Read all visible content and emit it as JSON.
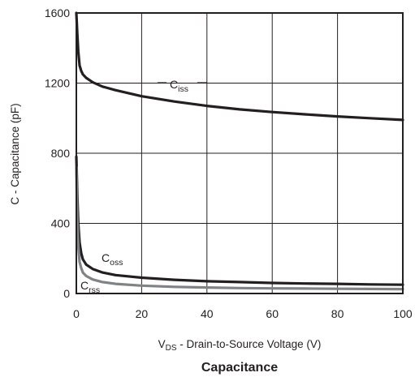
{
  "chart_data": {
    "type": "line",
    "title": "Capacitance",
    "xlabel": {
      "prefix": "V",
      "subscript": "DS",
      "rest": " - Drain-to-Source Voltage (V)"
    },
    "ylabel": "C - Capacitance (pF)",
    "xlim": [
      0,
      100
    ],
    "ylim": [
      0,
      1600
    ],
    "x_ticks": [
      0,
      20,
      40,
      60,
      80,
      100
    ],
    "y_ticks": [
      0,
      400,
      800,
      1200,
      1600
    ],
    "grid": true,
    "series": [
      {
        "name": {
          "main": "C",
          "sub": "iss"
        },
        "color": "#231f20",
        "x": [
          0,
          0.3,
          0.6,
          1,
          1.5,
          2,
          3,
          5,
          8,
          12,
          20,
          30,
          40,
          50,
          60,
          70,
          80,
          90,
          100
        ],
        "y": [
          1600,
          1480,
          1380,
          1300,
          1270,
          1250,
          1230,
          1205,
          1180,
          1160,
          1125,
          1095,
          1070,
          1050,
          1035,
          1022,
          1010,
          1000,
          990
        ]
      },
      {
        "name": {
          "main": "C",
          "sub": "oss"
        },
        "color": "#231f20",
        "x": [
          0,
          0.3,
          0.6,
          1,
          1.5,
          2,
          3,
          5,
          8,
          12,
          20,
          30,
          40,
          50,
          60,
          70,
          80,
          90,
          100
        ],
        "y": [
          780,
          560,
          400,
          290,
          230,
          195,
          165,
          140,
          120,
          105,
          90,
          78,
          70,
          65,
          60,
          57,
          55,
          52,
          50
        ]
      },
      {
        "name": {
          "main": "C",
          "sub": "rss"
        },
        "color": "#808285",
        "x": [
          0,
          0.3,
          0.6,
          1,
          1.5,
          2,
          3,
          5,
          8,
          12,
          20,
          30,
          40,
          50,
          60,
          70,
          80,
          90,
          100
        ],
        "y": [
          720,
          430,
          270,
          180,
          145,
          120,
          100,
          80,
          65,
          55,
          45,
          38,
          34,
          31,
          29,
          28,
          27,
          26,
          25
        ]
      }
    ]
  }
}
